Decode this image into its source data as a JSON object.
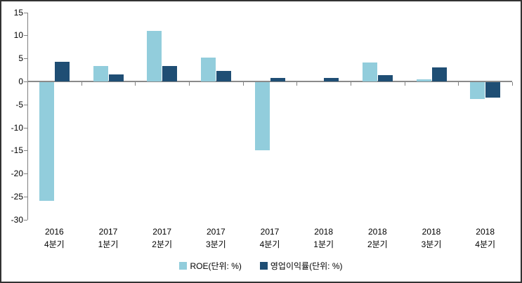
{
  "chart_data": {
    "type": "bar",
    "title": "",
    "xlabel": "",
    "ylabel": "",
    "categories": [
      {
        "year": "2016",
        "quarter": "4분기"
      },
      {
        "year": "2017",
        "quarter": "1분기"
      },
      {
        "year": "2017",
        "quarter": "2분기"
      },
      {
        "year": "2017",
        "quarter": "3분기"
      },
      {
        "year": "2017",
        "quarter": "4분기"
      },
      {
        "year": "2018",
        "quarter": "1분기"
      },
      {
        "year": "2018",
        "quarter": "2분기"
      },
      {
        "year": "2018",
        "quarter": "3분기"
      },
      {
        "year": "2018",
        "quarter": "4분기"
      }
    ],
    "series": [
      {
        "name": "ROE(단위: %)",
        "color": "#92CDDC",
        "values": [
          -25.7,
          3.4,
          11.0,
          5.2,
          -14.8,
          0,
          4.1,
          0.5,
          -3.7
        ]
      },
      {
        "name": "영업이익률(단위: %)",
        "color": "#1F4E74",
        "values": [
          4.3,
          1.5,
          3.4,
          2.3,
          0.8,
          0.8,
          1.4,
          3.0,
          -3.3
        ]
      }
    ],
    "ylim": [
      -30,
      15
    ],
    "y_ticks": [
      15,
      10,
      5,
      0,
      -5,
      -10,
      -15,
      -20,
      -25,
      -30
    ],
    "grid": false,
    "legend_position": "bottom",
    "colors": {
      "axis": "#808080",
      "text": "#000000",
      "background": "#ffffff",
      "frame_border": "#333333"
    }
  }
}
